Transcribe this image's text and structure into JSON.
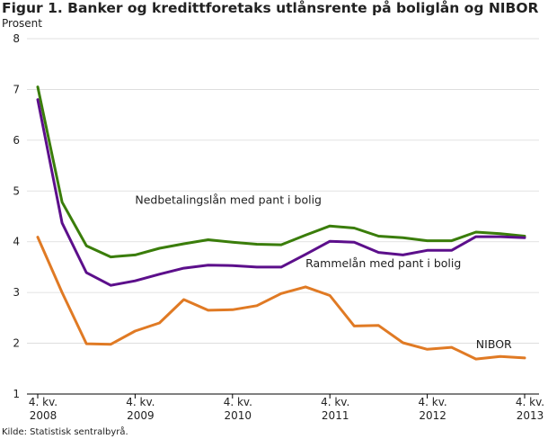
{
  "title": "Figur 1. Banker og kredittforetaks utlånsrente på boliglån og NIBOR",
  "unit_label": "Prosent",
  "source": "Kilde: Statistisk sentralbyrå.",
  "chart_data": {
    "type": "line",
    "title": "Figur 1. Banker og kredittforetaks utlånsrente på boliglån og NIBOR",
    "ylabel": "Prosent",
    "ylim": [
      1,
      8
    ],
    "yticks": [
      1,
      2,
      3,
      4,
      5,
      6,
      7,
      8
    ],
    "grid": "horizontal",
    "legend": "inline labels",
    "x": [
      "4. kv. 2008",
      "1. kv. 2009",
      "2. kv. 2009",
      "3. kv. 2009",
      "4. kv. 2009",
      "1. kv. 2010",
      "2. kv. 2010",
      "3. kv. 2010",
      "4. kv. 2010",
      "1. kv. 2011",
      "2. kv. 2011",
      "3. kv. 2011",
      "4. kv. 2011",
      "1. kv. 2012",
      "2. kv. 2012",
      "3. kv. 2012",
      "4. kv. 2012",
      "1. kv. 2013",
      "2. kv. 2013",
      "3. kv. 2013",
      "4. kv. 2013"
    ],
    "xticks": [
      {
        "index": 0,
        "line1": "4. kv.",
        "line2": "2008"
      },
      {
        "index": 4,
        "line1": "4. kv.",
        "line2": "2009"
      },
      {
        "index": 8,
        "line1": "4. kv.",
        "line2": "2010"
      },
      {
        "index": 12,
        "line1": "4. kv.",
        "line2": "2011"
      },
      {
        "index": 16,
        "line1": "4. kv.",
        "line2": "2012"
      },
      {
        "index": 20,
        "line1": "4. kv.",
        "line2": "2013"
      }
    ],
    "series": [
      {
        "name": "Nedbetalingslån med pant i bolig",
        "color": "#3a7d0a",
        "label_anchor_index": 4,
        "label_value": 4.75,
        "values": [
          7.05,
          4.78,
          3.92,
          3.7,
          3.74,
          3.87,
          3.96,
          4.04,
          3.99,
          3.95,
          3.94,
          4.13,
          4.31,
          4.27,
          4.11,
          4.08,
          4.02,
          4.02,
          4.19,
          4.16,
          4.11
        ]
      },
      {
        "name": "Rammelån med pant i bolig",
        "color": "#5c0f8b",
        "label_anchor_index": 11,
        "label_value": 3.5,
        "values": [
          6.8,
          4.37,
          3.39,
          3.14,
          3.23,
          3.36,
          3.48,
          3.54,
          3.53,
          3.5,
          3.5,
          3.75,
          4.01,
          3.99,
          3.79,
          3.74,
          3.83,
          3.83,
          4.1,
          4.1,
          4.08
        ]
      },
      {
        "name": "NIBOR",
        "color": "#e07a24",
        "label_anchor_index": 18,
        "label_value": 1.9,
        "values": [
          4.09,
          3.0,
          1.99,
          1.98,
          2.24,
          2.4,
          2.86,
          2.65,
          2.66,
          2.74,
          2.98,
          3.11,
          2.94,
          2.34,
          2.35,
          2.01,
          1.88,
          1.92,
          1.69,
          1.74,
          1.71
        ]
      }
    ]
  }
}
